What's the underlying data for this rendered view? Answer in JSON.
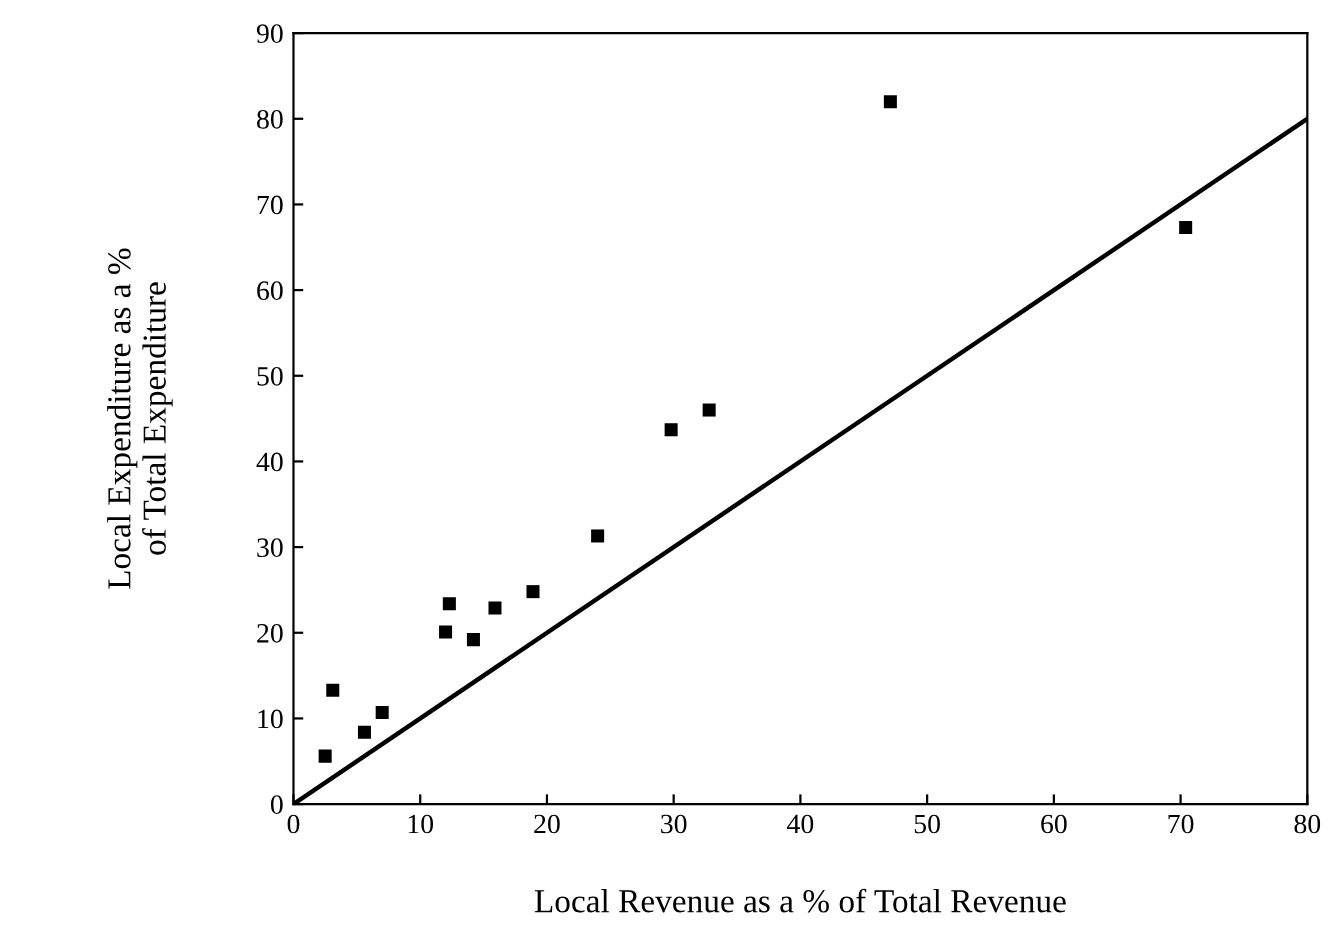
{
  "chart_data": {
    "type": "scatter",
    "xlabel": "Local Revenue as a % of Total Revenue",
    "ylabel": "Local Expenditure as a %\nof Total Expenditure",
    "xlim": [
      0,
      80
    ],
    "ylim": [
      0,
      90
    ],
    "xticks": [
      0,
      10,
      20,
      30,
      40,
      50,
      60,
      70,
      80
    ],
    "yticks": [
      0,
      10,
      20,
      30,
      40,
      50,
      60,
      70,
      80,
      90
    ],
    "grid": false,
    "legend": false,
    "series": [
      {
        "marker": "square",
        "color": "#000000",
        "x": [
          2.5,
          3.1,
          5.6,
          7.0,
          12.0,
          12.3,
          14.2,
          15.9,
          18.9,
          24.0,
          29.8,
          32.8,
          47.1,
          70.4
        ],
        "values": [
          5.6,
          13.3,
          8.4,
          10.7,
          20.1,
          23.4,
          19.2,
          22.9,
          24.8,
          31.3,
          43.7,
          46.0,
          82.0,
          67.3
        ]
      },
      {
        "type": "line",
        "color": "#000000",
        "x": [
          0,
          80
        ],
        "values": [
          0,
          80
        ],
        "line_style": "solid",
        "marker": "none"
      }
    ]
  }
}
